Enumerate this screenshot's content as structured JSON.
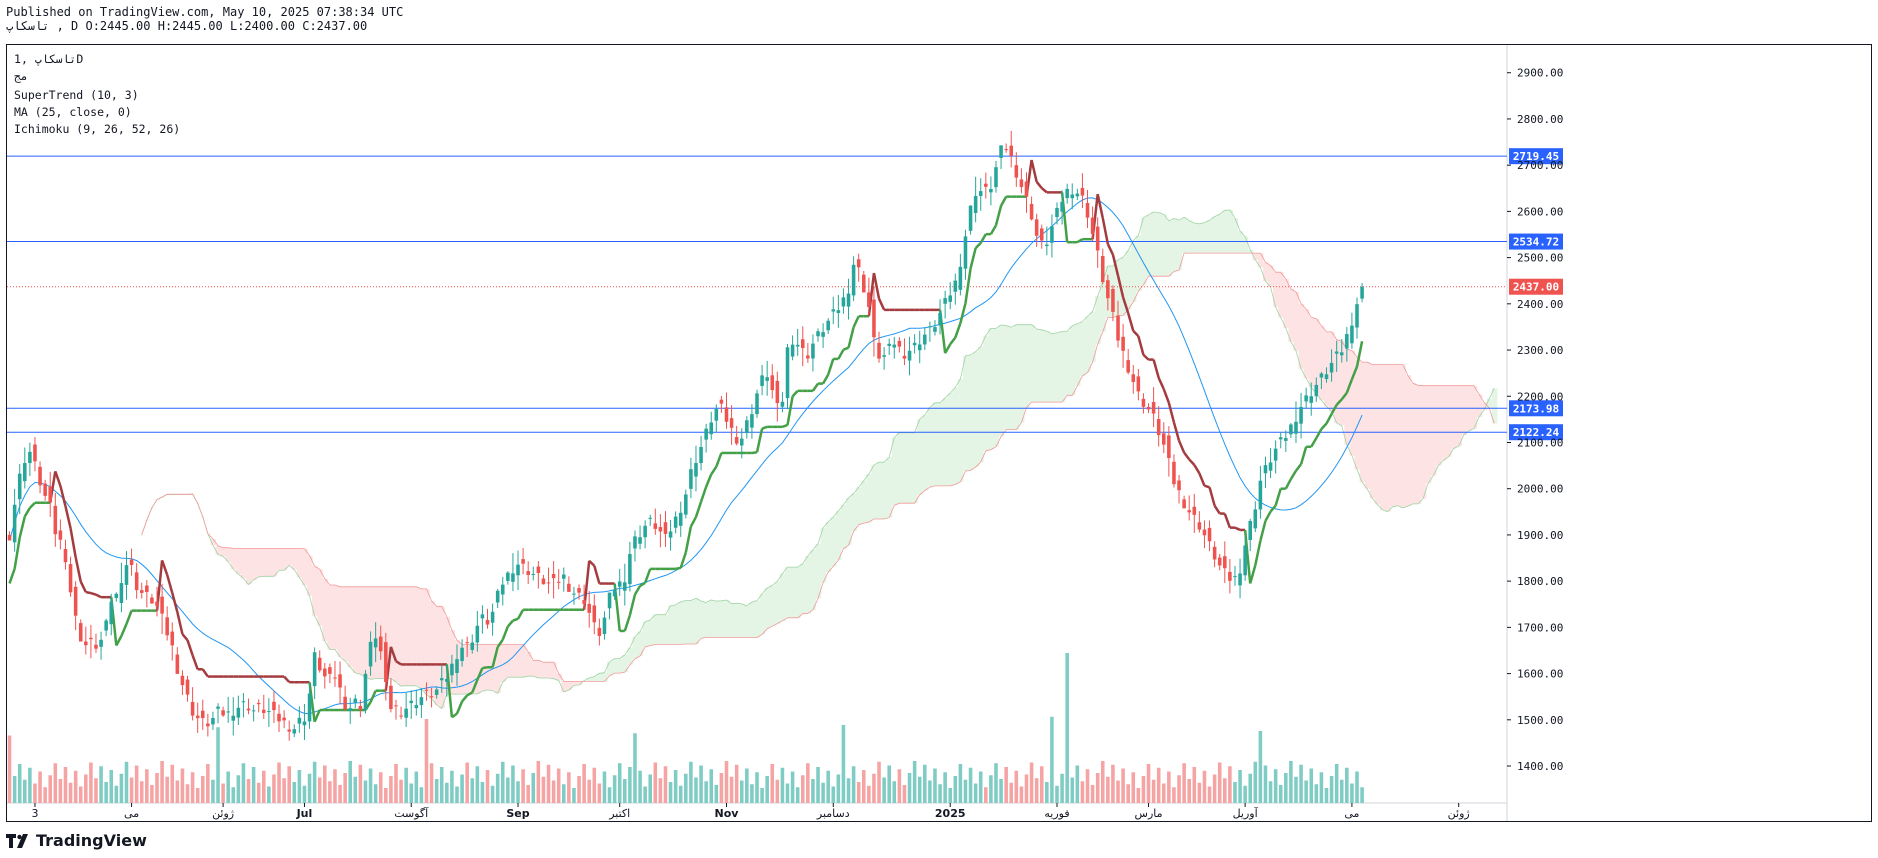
{
  "header": {
    "published": "Published on TradingView.com, May 10, 2025 07:38:34 UTC",
    "ohlc": "تاسکاپ , D O:2445.00 H:2445.00 L:2400.00 C:2437.00"
  },
  "legend": {
    "symbol": "تاسکاپ ,1D",
    "line2": "مج",
    "supertrend": "SuperTrend (10, 3)",
    "ma": "MA (25, close, 0)",
    "ichimoku": "Ichimoku (9, 26, 52, 26)"
  },
  "brand": {
    "name": "TradingView"
  },
  "colors": {
    "up": "#26a69a",
    "down": "#ef5350",
    "up_vol": "#7fccc4",
    "down_vol": "#f5a3a3",
    "hline": "#2962ff",
    "last_price": "#ef5350",
    "supertrend_up": "#43a047",
    "supertrend_down": "#a33b3f",
    "ma": "#2196f3",
    "cloud_bull": "#e4f4e5",
    "cloud_bear": "#fde3e3"
  },
  "chart_data": {
    "type": "candlestick",
    "timeframe": "1D",
    "ylim": [
      1320,
      2960
    ],
    "y_ticks": [
      1400,
      1500,
      1600,
      1700,
      1800,
      1900,
      2000,
      2100,
      2200,
      2300,
      2400,
      2500,
      2600,
      2700,
      2800,
      2900
    ],
    "y_tick_labels": [
      "1400.00",
      "1500.00",
      "1600.00",
      "1700.00",
      "1800.00",
      "1900.00",
      "2000.00",
      "2100.00",
      "2200.00",
      "2300.00",
      "2400.00",
      "2500.00",
      "2600.00",
      "2700.00",
      "2800.00",
      "2900.00"
    ],
    "x_labels": [
      {
        "label": "3",
        "bar": 5,
        "bold": false
      },
      {
        "label": "می",
        "bar": 24,
        "bold": false
      },
      {
        "label": "ژوئن",
        "bar": 42,
        "bold": false
      },
      {
        "label": "Jul",
        "bar": 58,
        "bold": true
      },
      {
        "label": "آگوست",
        "bar": 79,
        "bold": false
      },
      {
        "label": "Sep",
        "bar": 100,
        "bold": true
      },
      {
        "label": "اکتبر",
        "bar": 120,
        "bold": false
      },
      {
        "label": "Nov",
        "bar": 141,
        "bold": true
      },
      {
        "label": "دسامبر",
        "bar": 162,
        "bold": false
      },
      {
        "label": "2025",
        "bar": 185,
        "bold": true
      },
      {
        "label": "فوریه",
        "bar": 206,
        "bold": false
      },
      {
        "label": "مارس",
        "bar": 224,
        "bold": false
      },
      {
        "label": "آوریل",
        "bar": 243,
        "bold": false
      },
      {
        "label": "می",
        "bar": 264,
        "bold": false
      },
      {
        "label": "ژوئن",
        "bar": 285,
        "bold": false
      }
    ],
    "bar_count": 295,
    "last_bar": 266,
    "closes": [
      1900,
      1990,
      2060,
      2080,
      2040,
      1990,
      1960,
      1890,
      1880,
      1780,
      1700,
      1660,
      1665,
      1660,
      1680,
      1760,
      1770,
      1840,
      1830,
      1780,
      1770,
      1760,
      1740,
      1700,
      1660,
      1600,
      1560,
      1520,
      1500,
      1490,
      1500,
      1520,
      1510,
      1520,
      1530,
      1535,
      1520,
      1525,
      1520,
      1510,
      1500,
      1490,
      1480,
      1500,
      1510,
      1640,
      1610,
      1580,
      1600,
      1560,
      1520,
      1540,
      1530,
      1640,
      1690,
      1640,
      1530,
      1525,
      1520,
      1530,
      1540,
      1550,
      1555,
      1560,
      1580,
      1600,
      1640,
      1660,
      1660,
      1700,
      1720,
      1710,
      1760,
      1800,
      1820,
      1840,
      1830,
      1820,
      1810,
      1800,
      1790,
      1800,
      1810,
      1780,
      1770,
      1760,
      1720,
      1680,
      1720,
      1780,
      1790,
      1810,
      1880,
      1900,
      1920,
      1930,
      1910,
      1890,
      1920,
      1950,
      1990,
      2050,
      2080,
      2120,
      2160,
      2180,
      2150,
      2120,
      2100,
      2140,
      2180,
      2230,
      2250,
      2200,
      2150,
      2300,
      2330,
      2300,
      2290,
      2320,
      2340,
      2360,
      2380,
      2400,
      2430,
      2500,
      2450,
      2400,
      2300,
      2280,
      2300,
      2320,
      2290,
      2300,
      2310,
      2330,
      2340,
      2360,
      2390,
      2420,
      2450,
      2520,
      2600,
      2650,
      2640,
      2650,
      2700,
      2750,
      2720,
      2680,
      2640,
      2600,
      2540,
      2520,
      2560,
      2600,
      2640,
      2650,
      2640,
      2620,
      2560,
      2500,
      2430,
      2380,
      2320,
      2280,
      2240,
      2200,
      2180,
      2160,
      2120,
      2080,
      2020,
      1990,
      1960,
      1940,
      1920,
      1890,
      1860,
      1830,
      1810,
      1800,
      1830,
      1900,
      1950,
      2020,
      2050,
      2080,
      2100,
      2120,
      2150,
      2180,
      2200,
      2220,
      2240,
      2260,
      2280,
      2300,
      2340,
      2390,
      2437
    ],
    "series": [
      {
        "name": "SuperTrend (10, 3)",
        "type": "line"
      },
      {
        "name": "MA (25, close, 0)",
        "type": "line"
      },
      {
        "name": "Ichimoku (9, 26, 52, 26)",
        "type": "cloud"
      }
    ],
    "horizontal_lines": [
      {
        "price": 2719.45,
        "label": "2719.45"
      },
      {
        "price": 2534.72,
        "label": "2534.72"
      },
      {
        "price": 2173.98,
        "label": "2173.98"
      },
      {
        "price": 2122.24,
        "label": "2122.24"
      }
    ],
    "last_price": {
      "price": 2437.0,
      "label": "2437.00"
    },
    "volume_max_bar": {
      "bar": 208
    }
  }
}
